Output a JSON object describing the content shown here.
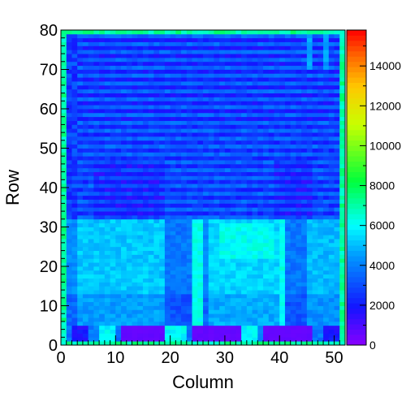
{
  "chart_data": {
    "type": "heatmap",
    "title": "",
    "xlabel": "Column",
    "ylabel": "Row",
    "xlim": [
      0,
      52
    ],
    "ylim": [
      0,
      80
    ],
    "zlim": [
      0,
      15800
    ],
    "x_ticks": [
      0,
      10,
      20,
      30,
      40,
      50
    ],
    "y_ticks": [
      0,
      10,
      20,
      30,
      40,
      50,
      60,
      70,
      80
    ],
    "z_ticks": [
      0,
      2000,
      4000,
      6000,
      8000,
      10000,
      12000,
      14000
    ],
    "colormap": "rainbow (violet → blue → cyan → green → yellow → orange → red)",
    "legend": "color scale at right",
    "grid": false,
    "bins": {
      "columns": 52,
      "rows": 80
    },
    "value_structure": {
      "upper_band_rows_32_to_79": "mostly 2000-4500, alternating bright and dark horizontal stripes every ~2 rows",
      "lower_band_rows_4_to_31": "mostly 3500-6500, brighter cyan/green regions near columns 3-18, 27-40 and 45-51",
      "dark_blocks_rows_1_to_4": [
        {
          "columns": [
            11,
            18
          ],
          "value": 500
        },
        {
          "columns": [
            24,
            32
          ],
          "value": 500
        },
        {
          "columns": [
            37,
            45
          ],
          "value": 500
        }
      ],
      "frame_border": "outermost rows and columns 6000-8000 (green)"
    }
  }
}
